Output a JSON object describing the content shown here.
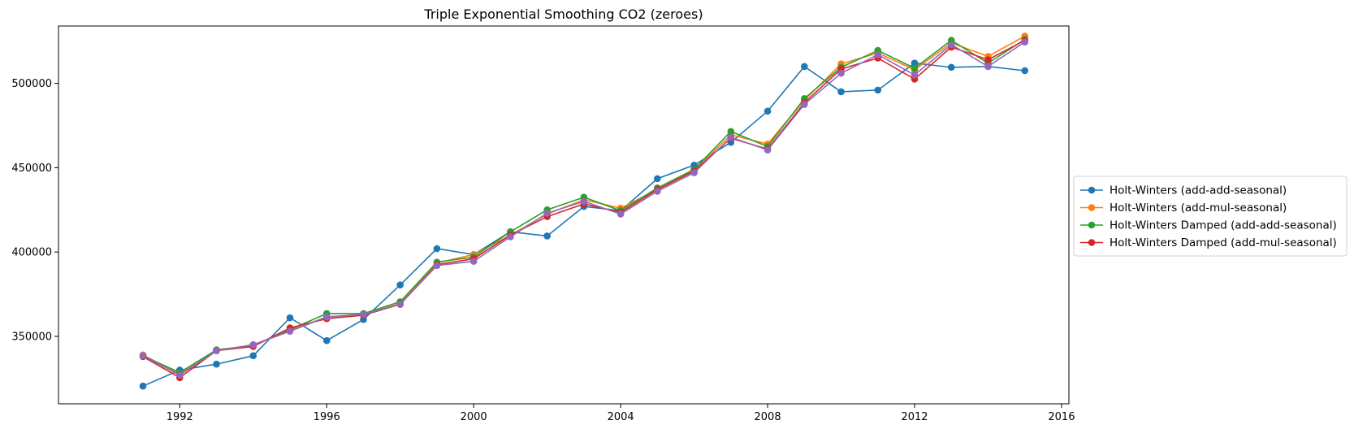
{
  "chart_data": {
    "type": "line",
    "title": "Triple Exponential Smoothing CO2 (zeroes)",
    "xlabel": "",
    "ylabel": "",
    "x": [
      1991,
      1992,
      1993,
      1994,
      1995,
      1996,
      1997,
      1998,
      1999,
      2000,
      2001,
      2002,
      2003,
      2004,
      2005,
      2006,
      2007,
      2008,
      2009,
      2010,
      2011,
      2012,
      2013,
      2014,
      2015
    ],
    "xlim": [
      1988.7,
      2016.2
    ],
    "ylim": [
      310000,
      534000
    ],
    "x_ticks": [
      1992,
      1996,
      2000,
      2004,
      2008,
      2012,
      2016
    ],
    "y_ticks": [
      350000,
      400000,
      450000,
      500000
    ],
    "grid": false,
    "legend_position": "outside-right",
    "series": [
      {
        "name": "Holt-Winters (add-add-seasonal)",
        "color": "#1f77b4",
        "in_legend": true,
        "values": [
          320500,
          330000,
          333500,
          338500,
          361000,
          347500,
          360000,
          380500,
          402000,
          398500,
          412000,
          409500,
          427000,
          424500,
          443500,
          451500,
          465000,
          483500,
          510000,
          495000,
          496000,
          512000,
          509500,
          510000,
          507500
        ]
      },
      {
        "name": "Holt-Winters (add-mul-seasonal)",
        "color": "#ff7f0e",
        "in_legend": true,
        "values": [
          339000,
          327500,
          341500,
          345000,
          353500,
          361500,
          363000,
          369500,
          393500,
          398500,
          410000,
          422500,
          431000,
          426000,
          437000,
          448500,
          469500,
          464000,
          490000,
          511500,
          518000,
          508000,
          524000,
          516000,
          528000
        ]
      },
      {
        "name": "Holt-Winters Damped (add-add-seasonal)",
        "color": "#2ca02c",
        "in_legend": true,
        "values": [
          338500,
          328500,
          342000,
          344500,
          354000,
          363500,
          363500,
          370500,
          394000,
          397000,
          412000,
          425000,
          432500,
          424500,
          438000,
          449000,
          471500,
          462500,
          491000,
          509500,
          519500,
          509000,
          525500,
          512000,
          526000
        ]
      },
      {
        "name": "Holt-Winters Damped (add-mul-seasonal)",
        "color": "#d62728",
        "in_legend": true,
        "values": [
          338000,
          325500,
          341500,
          344000,
          355000,
          360500,
          362500,
          369000,
          392500,
          396000,
          410000,
          421000,
          428500,
          423500,
          437000,
          448000,
          467500,
          461000,
          488500,
          508500,
          515000,
          502500,
          521500,
          514000,
          525500
        ]
      },
      {
        "name": "",
        "color": "#9467bd",
        "in_legend": false,
        "values": [
          338500,
          327000,
          341500,
          345000,
          353000,
          361500,
          363000,
          369000,
          392000,
          394500,
          409000,
          423000,
          430000,
          422500,
          436000,
          447000,
          468000,
          460500,
          487500,
          506000,
          517000,
          505000,
          523000,
          510000,
          524500
        ]
      }
    ]
  }
}
